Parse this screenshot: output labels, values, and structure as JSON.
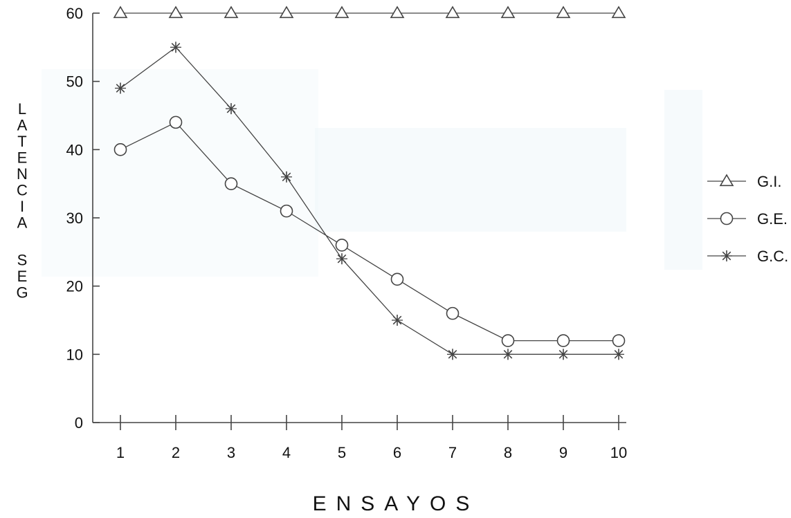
{
  "chart_data": {
    "type": "line",
    "xlabel": "ENSAYOS",
    "ylabel": "LATENCIA SEG",
    "title": "",
    "x": [
      1,
      2,
      3,
      4,
      5,
      6,
      7,
      8,
      9,
      10
    ],
    "xticks": [
      "1",
      "2",
      "3",
      "4",
      "5",
      "6",
      "7",
      "8",
      "9",
      "10"
    ],
    "yticks": [
      "0",
      "10",
      "20",
      "30",
      "40",
      "50",
      "60"
    ],
    "ylim": [
      0,
      60
    ],
    "xlim": [
      0.5,
      10.5
    ],
    "grid": false,
    "legend_position": "right",
    "series": [
      {
        "name": "G.I.",
        "marker": "triangle",
        "values": [
          60,
          60,
          60,
          60,
          60,
          60,
          60,
          60,
          60,
          60
        ]
      },
      {
        "name": "G.E.",
        "marker": "circle",
        "values": [
          40,
          44,
          35,
          31,
          26,
          21,
          16,
          12,
          12,
          12
        ]
      },
      {
        "name": "G.C.",
        "marker": "asterisk",
        "values": [
          49,
          55,
          46,
          36,
          24,
          15,
          10,
          10,
          10,
          10
        ]
      }
    ],
    "colors": {
      "line": "#444444",
      "text": "#111111",
      "background": "#ffffff"
    }
  }
}
